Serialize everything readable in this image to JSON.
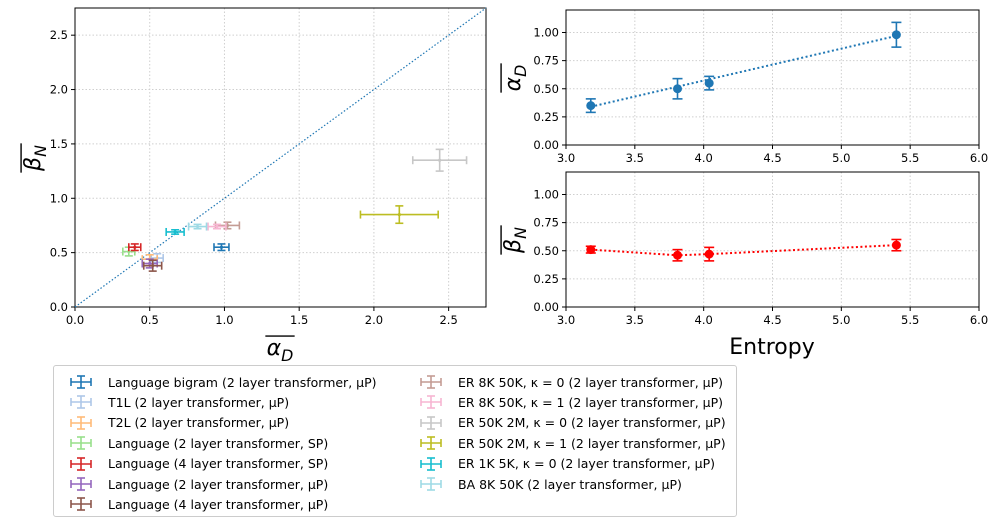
{
  "chart_data": [
    {
      "type": "scatter",
      "id": "main",
      "xlabel": "α̅_D",
      "ylabel": "β̅_N",
      "xlim": [
        0,
        2.75
      ],
      "ylim": [
        0,
        2.75
      ],
      "xticks": [
        "0.0",
        "0.5",
        "1.0",
        "1.5",
        "2.0",
        "2.5"
      ],
      "yticks": [
        "0.0",
        "0.5",
        "1.0",
        "1.5",
        "2.0",
        "2.5"
      ],
      "grid": true,
      "reference_line": "y = x (dotted)",
      "series": [
        {
          "name": "Language bigram (2 layer transformer, μP)",
          "color": "#1f77b4",
          "x": 0.98,
          "y": 0.55,
          "xerr": 0.05,
          "yerr": 0.03
        },
        {
          "name": "T1L (2 layer transformer, μP)",
          "color": "#aec7e8",
          "x": 0.55,
          "y": 0.45,
          "xerr": 0.04,
          "yerr": 0.04
        },
        {
          "name": "T2L (2 layer transformer, μP)",
          "color": "#ffbb78",
          "x": 0.5,
          "y": 0.44,
          "xerr": 0.05,
          "yerr": 0.04
        },
        {
          "name": "Language (2 layer transformer, SP)",
          "color": "#98df8a",
          "x": 0.36,
          "y": 0.51,
          "xerr": 0.04,
          "yerr": 0.04
        },
        {
          "name": "Language (4 layer transformer, SP)",
          "color": "#d62728",
          "x": 0.4,
          "y": 0.55,
          "xerr": 0.04,
          "yerr": 0.03
        },
        {
          "name": "Language (2 layer transformer, μP)",
          "color": "#9467bd",
          "x": 0.5,
          "y": 0.4,
          "xerr": 0.05,
          "yerr": 0.04
        },
        {
          "name": "Language (4 layer transformer, μP)",
          "color": "#8c564b",
          "x": 0.52,
          "y": 0.38,
          "xerr": 0.06,
          "yerr": 0.05
        },
        {
          "name": "ER 8K 50K, κ = 0 (2 layer transformer, μP)",
          "color": "#c49c94",
          "x": 1.02,
          "y": 0.75,
          "xerr": 0.08,
          "yerr": 0.03
        },
        {
          "name": "ER 8K 50K, κ = 1 (2 layer transformer, μP)",
          "color": "#f7b6d2",
          "x": 0.95,
          "y": 0.74,
          "xerr": 0.06,
          "yerr": 0.02
        },
        {
          "name": "ER 50K 2M, κ = 0 (2 layer transformer, μP)",
          "color": "#c7c7c7",
          "x": 2.44,
          "y": 1.35,
          "xerr": 0.18,
          "yerr": 0.1
        },
        {
          "name": "ER 50K 2M, κ = 1 (2 layer transformer, μP)",
          "color": "#bcbd22",
          "x": 2.17,
          "y": 0.85,
          "xerr": 0.26,
          "yerr": 0.08
        },
        {
          "name": "ER 1K 5K, κ = 0 (2 layer transformer, μP)",
          "color": "#17becf",
          "x": 0.67,
          "y": 0.69,
          "xerr": 0.06,
          "yerr": 0.02
        },
        {
          "name": "BA 8K 50K (2 layer transformer, μP)",
          "color": "#9edae5",
          "x": 0.82,
          "y": 0.74,
          "xerr": 0.06,
          "yerr": 0.02
        }
      ]
    },
    {
      "type": "line",
      "id": "alpha_vs_entropy",
      "xlabel": "",
      "ylabel": "α̅_D",
      "color": "#1f77b4",
      "xlim": [
        3.0,
        6.0
      ],
      "ylim": [
        0.0,
        1.2
      ],
      "xticks": [
        "3.0",
        "3.5",
        "4.0",
        "4.5",
        "5.0",
        "5.5",
        "6.0"
      ],
      "yticks": [
        "0.00",
        "0.25",
        "0.50",
        "0.75",
        "1.00"
      ],
      "x": [
        3.18,
        3.81,
        4.04,
        5.4
      ],
      "y": [
        0.35,
        0.5,
        0.55,
        0.98
      ],
      "yerr": [
        0.06,
        0.09,
        0.06,
        0.11
      ],
      "fit_line": [
        [
          3.18,
          0.34
        ],
        [
          5.4,
          0.97
        ]
      ],
      "grid": true
    },
    {
      "type": "line",
      "id": "beta_vs_entropy",
      "xlabel": "Entropy",
      "ylabel": "β̅_N",
      "color": "#ff0000",
      "xlim": [
        3.0,
        6.0
      ],
      "ylim": [
        0.0,
        1.2
      ],
      "xticks": [
        "3.0",
        "3.5",
        "4.0",
        "4.5",
        "5.0",
        "5.5",
        "6.0"
      ],
      "yticks": [
        "0.00",
        "0.25",
        "0.50",
        "0.75",
        "1.00"
      ],
      "x": [
        3.18,
        3.81,
        4.04,
        5.4
      ],
      "y": [
        0.51,
        0.46,
        0.47,
        0.55
      ],
      "yerr": [
        0.03,
        0.05,
        0.06,
        0.05
      ],
      "grid": true
    }
  ]
}
